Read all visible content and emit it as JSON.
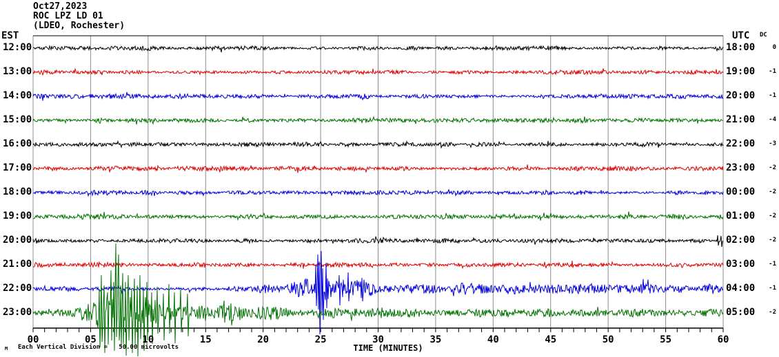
{
  "header": {
    "date": "Oct27,2023",
    "station": "ROC LPZ LD 01",
    "location": "(LDEO, Rochester)"
  },
  "axes": {
    "left_header": "EST",
    "right_header": "UTC",
    "dc_header": "DC",
    "x_title": "TIME (MINUTES)",
    "x_tick_labels": [
      "00",
      "05",
      "10",
      "15",
      "20",
      "25",
      "30",
      "35",
      "40",
      "45",
      "50",
      "55",
      "60"
    ],
    "x_minutes_min": 0,
    "x_minutes_max": 60,
    "minor_tick_every_minutes": 1,
    "gridline_every_minutes": 5
  },
  "footer": {
    "scale_marker": "M",
    "note": "Each Vertical Division =   50.00 microvolts"
  },
  "chart_data": {
    "type": "line",
    "kind": "helicorder-seismogram",
    "title": "ROC LPZ LD 01 (LDEO, Rochester) Oct27,2023",
    "xlabel": "TIME (MINUTES)",
    "x_range": [
      0,
      60
    ],
    "rows_are": "one hour per trace, EST left / UTC right, DC offset column at far right",
    "vertical_division_microvolts": 50.0,
    "colors": {
      "black": "#000000",
      "red": "#dd0000",
      "blue": "#0000dd",
      "green": "#007200",
      "grid": "#8c8c8c",
      "frame": "#8c8c8c",
      "axis": "#000000"
    },
    "events_visible": [
      {
        "row_est": "22:00",
        "row_utc": "04:00",
        "onset_min": 20,
        "peak_min": 25,
        "description": "emergent burst peaking near minute 25, coda elevated to end of hour"
      },
      {
        "row_est": "23:00",
        "row_utc": "05:00",
        "onset_min": 2,
        "peak_min": 7.2,
        "description": "large clipped event minutes 5.5-9.5, spikes overrun adjacent rows and bottom axis, slow decay"
      }
    ],
    "rows": [
      {
        "est": "12:00",
        "utc": "18:00",
        "dc": "0",
        "color": "black",
        "base_amp": 2.6,
        "seed": 101,
        "segments": [],
        "spikes": []
      },
      {
        "est": "13:00",
        "utc": "19:00",
        "dc": "-1",
        "color": "red",
        "base_amp": 2.4,
        "seed": 212,
        "segments": [],
        "spikes": []
      },
      {
        "est": "14:00",
        "utc": "20:00",
        "dc": "-1",
        "color": "blue",
        "base_amp": 2.8,
        "seed": 323,
        "segments": [],
        "spikes": []
      },
      {
        "est": "15:00",
        "utc": "21:00",
        "dc": "-4",
        "color": "green",
        "base_amp": 2.6,
        "seed": 434,
        "segments": [],
        "spikes": []
      },
      {
        "est": "16:00",
        "utc": "22:00",
        "dc": "-3",
        "color": "black",
        "base_amp": 2.4,
        "seed": 545,
        "segments": [],
        "spikes": []
      },
      {
        "est": "17:00",
        "utc": "23:00",
        "dc": "-2",
        "color": "red",
        "base_amp": 2.6,
        "seed": 656,
        "segments": [],
        "spikes": []
      },
      {
        "est": "18:00",
        "utc": "00:00",
        "dc": "-2",
        "color": "blue",
        "base_amp": 2.6,
        "seed": 767,
        "segments": [],
        "spikes": []
      },
      {
        "est": "19:00",
        "utc": "01:00",
        "dc": "-2",
        "color": "green",
        "base_amp": 2.8,
        "seed": 878,
        "segments": [],
        "spikes": []
      },
      {
        "est": "20:00",
        "utc": "02:00",
        "dc": "-2",
        "color": "black",
        "base_amp": 2.6,
        "seed": 989,
        "segments": [],
        "spikes": [
          [
            59.55,
            8,
            7
          ],
          [
            59.8,
            7,
            9
          ]
        ]
      },
      {
        "est": "21:00",
        "utc": "03:00",
        "dc": "-1",
        "color": "red",
        "base_amp": 2.6,
        "seed": 111,
        "segments": [],
        "spikes": []
      },
      {
        "est": "22:00",
        "utc": "04:00",
        "dc": "-1",
        "color": "blue",
        "base_amp": 3.0,
        "seed": 222,
        "segments": [
          [
            0,
            19,
            3,
            3
          ],
          [
            19,
            21,
            4,
            7
          ],
          [
            21,
            22.5,
            7,
            9
          ],
          [
            22.5,
            23.5,
            9,
            12
          ],
          [
            23.5,
            24.4,
            14,
            18
          ],
          [
            24.4,
            25.6,
            22,
            22
          ],
          [
            25.6,
            27,
            16,
            13
          ],
          [
            27,
            30,
            11,
            9
          ],
          [
            30,
            35,
            8,
            7
          ],
          [
            35,
            45,
            7,
            6
          ],
          [
            45,
            60,
            6,
            5
          ]
        ],
        "spikes": [
          [
            24.6,
            35,
            25
          ],
          [
            24.75,
            50,
            30
          ],
          [
            24.9,
            40,
            66
          ],
          [
            25.05,
            55,
            35
          ],
          [
            25.2,
            30,
            45
          ],
          [
            25.45,
            38,
            28
          ],
          [
            26.6,
            20,
            24
          ],
          [
            27.4,
            24,
            18
          ],
          [
            28.6,
            16,
            18
          ]
        ]
      },
      {
        "est": "23:00",
        "utc": "05:00",
        "dc": "-2",
        "color": "green",
        "base_amp": 3.2,
        "seed": 333,
        "segments": [
          [
            0,
            2,
            4,
            5
          ],
          [
            2,
            3.5,
            6,
            9
          ],
          [
            3.5,
            5,
            10,
            14
          ],
          [
            5,
            5.5,
            16,
            24
          ],
          [
            5.5,
            9.5,
            30,
            30
          ],
          [
            9.5,
            12,
            22,
            17
          ],
          [
            12,
            14,
            15,
            11
          ],
          [
            14,
            16,
            10,
            9
          ],
          [
            16,
            18.5,
            12,
            9
          ],
          [
            18.5,
            20,
            8,
            8
          ],
          [
            20,
            22,
            10,
            8
          ],
          [
            22,
            27,
            6,
            6
          ],
          [
            27,
            28.5,
            8,
            7
          ],
          [
            28.5,
            40,
            6,
            5
          ],
          [
            40,
            60,
            5,
            5
          ]
        ],
        "spikes": [
          [
            5.75,
            35,
            50
          ],
          [
            5.95,
            55,
            42
          ],
          [
            6.2,
            40,
            58
          ],
          [
            6.5,
            30,
            46
          ],
          [
            6.8,
            62,
            40
          ],
          [
            7.0,
            45,
            55
          ],
          [
            7.18,
            101,
            35
          ],
          [
            7.35,
            50,
            63
          ],
          [
            7.45,
            85,
            40
          ],
          [
            7.6,
            40,
            50
          ],
          [
            7.8,
            58,
            45
          ],
          [
            8.05,
            45,
            62
          ],
          [
            8.3,
            55,
            40
          ],
          [
            8.55,
            35,
            58
          ],
          [
            8.8,
            50,
            45
          ],
          [
            9.05,
            40,
            63
          ],
          [
            9.3,
            55,
            38
          ],
          [
            9.6,
            35,
            55
          ],
          [
            9.9,
            45,
            40
          ],
          [
            10.3,
            30,
            45
          ],
          [
            10.8,
            38,
            30
          ],
          [
            11.3,
            28,
            40
          ],
          [
            11.8,
            42,
            30
          ],
          [
            12.3,
            30,
            44
          ],
          [
            12.8,
            35,
            28
          ],
          [
            13.4,
            28,
            34
          ],
          [
            16.6,
            18,
            14
          ],
          [
            17.2,
            14,
            18
          ]
        ]
      }
    ]
  }
}
